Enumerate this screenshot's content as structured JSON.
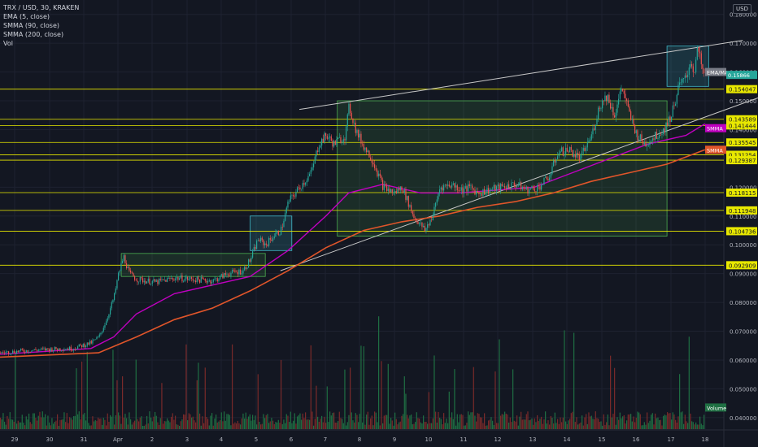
{
  "header": {
    "symbol": "TRX / USD, 30, KRAKEN",
    "indicators": [
      "EMA (5, close)",
      "SMMA (90, close)",
      "SMMA (200, close)",
      "Vol"
    ],
    "currency": "USD"
  },
  "colors": {
    "background": "#131722",
    "grid": "#1e2230",
    "up_candle": "#26a69a",
    "down_candle": "#ef5350",
    "smma90": "#c000c0",
    "smma200": "#e0552a",
    "level_line": "#e8e800",
    "trendline": "#c8c8c8",
    "box_fill": "rgba(76,175,80,0.15)",
    "box_border": "#4caf50",
    "cyan_box": "#3fb8c8",
    "volume_up": "#1f6f43",
    "volume_down": "#7a2a2a"
  },
  "chart_data": {
    "type": "candlestick",
    "x_ticks": [
      "29",
      "30",
      "31",
      "Apr",
      "2",
      "3",
      "4",
      "5",
      "6",
      "7",
      "8",
      "9",
      "10",
      "11",
      "12",
      "13",
      "14",
      "15",
      "16",
      "17",
      "18"
    ],
    "y_ticks": [
      "0.180000",
      "0.170000",
      "0.160000",
      "0.150000",
      "0.140000",
      "0.130000",
      "0.120000",
      "0.110000",
      "0.100000",
      "0.090000",
      "0.080000",
      "0.070000",
      "0.060000",
      "0.050000",
      "0.040000"
    ],
    "y_tick_values": [
      0.18,
      0.17,
      0.16,
      0.15,
      0.14,
      0.13,
      0.12,
      0.11,
      0.1,
      0.09,
      0.08,
      0.07,
      0.06,
      0.05,
      0.04
    ],
    "x_range_days": [
      29,
      47.5
    ],
    "ylim": [
      0.036,
      0.185
    ],
    "price_path": [
      [
        28.4,
        0.0625
      ],
      [
        29.0,
        0.0632
      ],
      [
        29.8,
        0.0638
      ],
      [
        30.3,
        0.064
      ],
      [
        30.8,
        0.066
      ],
      [
        31.0,
        0.068
      ],
      [
        31.2,
        0.074
      ],
      [
        31.4,
        0.082
      ],
      [
        31.5,
        0.089
      ],
      [
        31.65,
        0.096
      ],
      [
        31.8,
        0.09
      ],
      [
        32.0,
        0.088
      ],
      [
        32.5,
        0.087
      ],
      [
        33.0,
        0.0885
      ],
      [
        33.5,
        0.088
      ],
      [
        34.0,
        0.0875
      ],
      [
        34.4,
        0.09
      ],
      [
        34.8,
        0.091
      ],
      [
        35.0,
        0.095
      ],
      [
        35.2,
        0.102
      ],
      [
        35.4,
        0.1
      ],
      [
        35.6,
        0.103
      ],
      [
        35.8,
        0.105
      ],
      [
        36.0,
        0.115
      ],
      [
        36.3,
        0.12
      ],
      [
        36.6,
        0.125
      ],
      [
        36.8,
        0.135
      ],
      [
        37.0,
        0.138
      ],
      [
        37.2,
        0.135
      ],
      [
        37.5,
        0.138
      ],
      [
        37.6,
        0.148
      ],
      [
        37.8,
        0.139
      ],
      [
        38.0,
        0.134
      ],
      [
        38.2,
        0.13
      ],
      [
        38.5,
        0.12
      ],
      [
        38.8,
        0.118
      ],
      [
        39.0,
        0.12
      ],
      [
        39.3,
        0.11
      ],
      [
        39.6,
        0.105
      ],
      [
        39.8,
        0.11
      ],
      [
        40.0,
        0.12
      ],
      [
        40.3,
        0.121
      ],
      [
        40.6,
        0.119
      ],
      [
        40.8,
        0.12
      ],
      [
        41.0,
        0.118
      ],
      [
        41.3,
        0.119
      ],
      [
        41.6,
        0.12
      ],
      [
        42.0,
        0.121
      ],
      [
        42.3,
        0.119
      ],
      [
        42.6,
        0.12
      ],
      [
        42.9,
        0.124
      ],
      [
        43.1,
        0.132
      ],
      [
        43.4,
        0.133
      ],
      [
        43.7,
        0.13
      ],
      [
        44.0,
        0.138
      ],
      [
        44.2,
        0.148
      ],
      [
        44.4,
        0.152
      ],
      [
        44.6,
        0.145
      ],
      [
        44.8,
        0.155
      ],
      [
        45.0,
        0.145
      ],
      [
        45.2,
        0.138
      ],
      [
        45.4,
        0.135
      ],
      [
        45.7,
        0.138
      ],
      [
        45.9,
        0.14
      ],
      [
        46.1,
        0.145
      ],
      [
        46.3,
        0.155
      ],
      [
        46.5,
        0.158
      ],
      [
        46.6,
        0.164
      ],
      [
        46.7,
        0.16
      ],
      [
        46.8,
        0.168
      ],
      [
        46.9,
        0.162
      ],
      [
        47.0,
        0.156
      ]
    ],
    "smma90_path": [
      [
        28.4,
        0.062
      ],
      [
        30.8,
        0.064
      ],
      [
        31.4,
        0.068
      ],
      [
        32.0,
        0.076
      ],
      [
        33.0,
        0.083
      ],
      [
        34.0,
        0.086
      ],
      [
        35.0,
        0.089
      ],
      [
        36.0,
        0.098
      ],
      [
        37.0,
        0.11
      ],
      [
        37.6,
        0.118
      ],
      [
        38.5,
        0.121
      ],
      [
        39.5,
        0.118
      ],
      [
        40.5,
        0.118
      ],
      [
        41.5,
        0.119
      ],
      [
        42.5,
        0.12
      ],
      [
        43.5,
        0.125
      ],
      [
        44.5,
        0.13
      ],
      [
        45.5,
        0.135
      ],
      [
        46.5,
        0.138
      ],
      [
        47.0,
        0.142
      ]
    ],
    "smma200_path": [
      [
        28.4,
        0.061
      ],
      [
        31.0,
        0.0625
      ],
      [
        32.0,
        0.068
      ],
      [
        33.0,
        0.074
      ],
      [
        34.0,
        0.078
      ],
      [
        35.0,
        0.084
      ],
      [
        36.0,
        0.091
      ],
      [
        37.0,
        0.099
      ],
      [
        38.0,
        0.105
      ],
      [
        39.0,
        0.108
      ],
      [
        40.0,
        0.11
      ],
      [
        41.0,
        0.113
      ],
      [
        42.0,
        0.115
      ],
      [
        43.0,
        0.118
      ],
      [
        44.0,
        0.122
      ],
      [
        45.0,
        0.125
      ],
      [
        46.0,
        0.128
      ],
      [
        47.0,
        0.133
      ]
    ],
    "levels": [
      {
        "price": 0.154047,
        "label": "0.154047"
      },
      {
        "price": 0.143589,
        "label": "0.143589"
      },
      {
        "price": 0.141444,
        "label": "0.141444"
      },
      {
        "price": 0.135545,
        "label": "0.135545"
      },
      {
        "price": 0.131254,
        "label": "0.131254"
      },
      {
        "price": 0.129387,
        "label": "0.129387"
      },
      {
        "price": 0.118115,
        "label": "0.118115"
      },
      {
        "price": 0.111948,
        "label": "0.111948"
      },
      {
        "price": 0.104736,
        "label": "0.104736"
      },
      {
        "price": 0.092909,
        "label": "0.092909"
      }
    ],
    "trendlines": [
      {
        "from": [
          36.3,
          0.147
        ],
        "to": [
          48.0,
          0.171
        ]
      },
      {
        "from": [
          35.8,
          0.091
        ],
        "to": [
          48.4,
          0.151
        ]
      }
    ],
    "boxes": [
      {
        "from": [
          31.6,
          0.097
        ],
        "to": [
          35.4,
          0.089
        ],
        "style": "green"
      },
      {
        "from": [
          35.0,
          0.11
        ],
        "to": [
          36.1,
          0.098
        ],
        "style": "cyan"
      },
      {
        "from": [
          37.3,
          0.15
        ],
        "to": [
          46.0,
          0.103
        ],
        "style": "green"
      },
      {
        "from": [
          46.0,
          0.169
        ],
        "to": [
          47.1,
          0.155
        ],
        "style": "cyan"
      }
    ],
    "price_tags": [
      {
        "text": "EMA/MA",
        "price": 0.16,
        "color": "#787b86"
      },
      {
        "text": "0.15866",
        "price": 0.159,
        "color": "#26a69a"
      },
      {
        "text": "SMMA",
        "price": 0.1405,
        "color": "#c000c0"
      },
      {
        "text": "SMMA",
        "price": 0.133,
        "color": "#e0552a"
      },
      {
        "text": "Volume",
        "price": 0.0435,
        "color": "#1f6f43"
      }
    ]
  }
}
